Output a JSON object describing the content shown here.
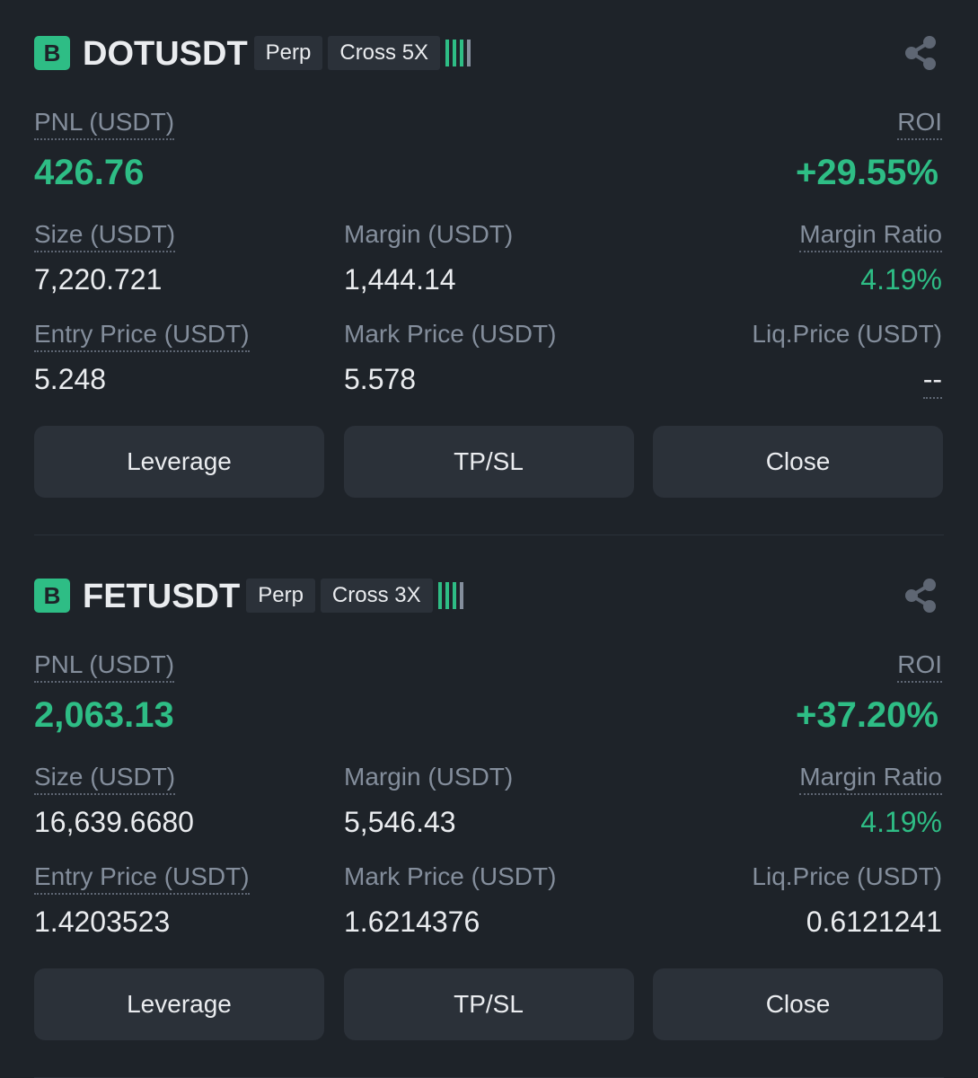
{
  "positions": [
    {
      "side": "B",
      "symbol": "DOTUSDT",
      "tags": [
        "Perp",
        "Cross 5X"
      ],
      "pnl": {
        "label": "PNL (USDT)",
        "value": "426.76"
      },
      "roi": {
        "label": "ROI",
        "value": "+29.55%"
      },
      "fields": [
        {
          "label": "Size (USDT)",
          "value": "7,220.721"
        },
        {
          "label": "Margin (USDT)",
          "value": "1,444.14"
        },
        {
          "label": "Margin Ratio",
          "value": "4.19%"
        },
        {
          "label": "Entry Price (USDT)",
          "value": "5.248"
        },
        {
          "label": "Mark Price (USDT)",
          "value": "5.578"
        },
        {
          "label": "Liq.Price (USDT)",
          "value": "--"
        }
      ],
      "buttons": [
        "Leverage",
        "TP/SL",
        "Close"
      ]
    },
    {
      "side": "B",
      "symbol": "FETUSDT",
      "tags": [
        "Perp",
        "Cross 3X"
      ],
      "pnl": {
        "label": "PNL (USDT)",
        "value": "2,063.13"
      },
      "roi": {
        "label": "ROI",
        "value": "+37.20%"
      },
      "fields": [
        {
          "label": "Size (USDT)",
          "value": "16,639.6680"
        },
        {
          "label": "Margin (USDT)",
          "value": "5,546.43"
        },
        {
          "label": "Margin Ratio",
          "value": "4.19%"
        },
        {
          "label": "Entry Price (USDT)",
          "value": "1.4203523"
        },
        {
          "label": "Mark Price (USDT)",
          "value": "1.6214376"
        },
        {
          "label": "Liq.Price (USDT)",
          "value": "0.6121241"
        }
      ],
      "buttons": [
        "Leverage",
        "TP/SL",
        "Close"
      ]
    }
  ]
}
